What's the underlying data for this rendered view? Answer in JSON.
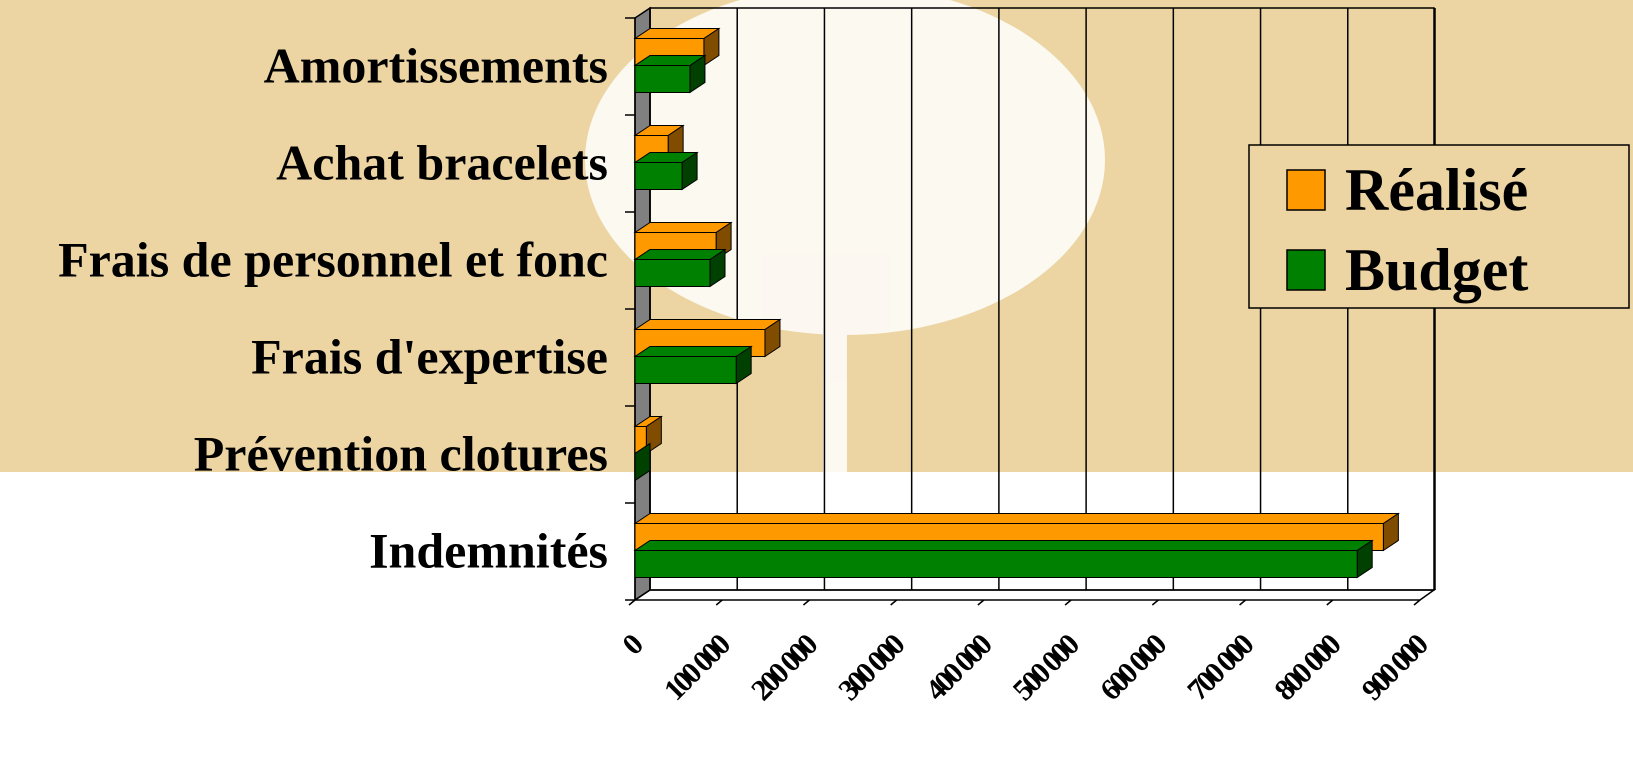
{
  "chart_data": {
    "type": "bar3d_horizontal",
    "categories": [
      "Amortissements",
      "Achat bracelets",
      "Frais de personnel et fonc",
      "Frais d'expertise",
      "Prévention clotures",
      "Indemnités"
    ],
    "series": [
      {
        "name": "Réalisé",
        "color": "#ff9900",
        "values": [
          79000,
          38000,
          93000,
          149000,
          13000,
          858000
        ]
      },
      {
        "name": "Budget",
        "color": "#008000",
        "values": [
          63000,
          54000,
          86000,
          116000,
          0,
          828000
        ]
      }
    ],
    "xlim": [
      0,
      900000
    ],
    "xticks": [
      0,
      {
        "value": 100000,
        "label": "100 000"
      },
      {
        "value": 200000,
        "label": "200 000"
      },
      {
        "value": 300000,
        "label": "300 000"
      },
      {
        "value": 400000,
        "label": "400 000"
      },
      {
        "value": 500000,
        "label": "500 000"
      },
      {
        "value": 600000,
        "label": "600 000"
      },
      {
        "value": 700000,
        "label": "700 000"
      },
      {
        "value": 800000,
        "label": "800 000"
      },
      {
        "value": 900000,
        "label": "900 000"
      }
    ],
    "grid": true,
    "legend": "right"
  }
}
